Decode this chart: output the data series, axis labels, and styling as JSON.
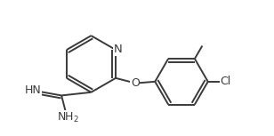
{
  "bg_color": "#ffffff",
  "bond_color": "#3a3a3a",
  "text_color": "#3a3a3a",
  "line_width": 1.4,
  "font_size": 8.5,
  "figsize": [
    3.08,
    1.53
  ],
  "dpi": 100,
  "xlim": [
    0.0,
    9.5
  ],
  "ylim": [
    0.5,
    5.5
  ]
}
